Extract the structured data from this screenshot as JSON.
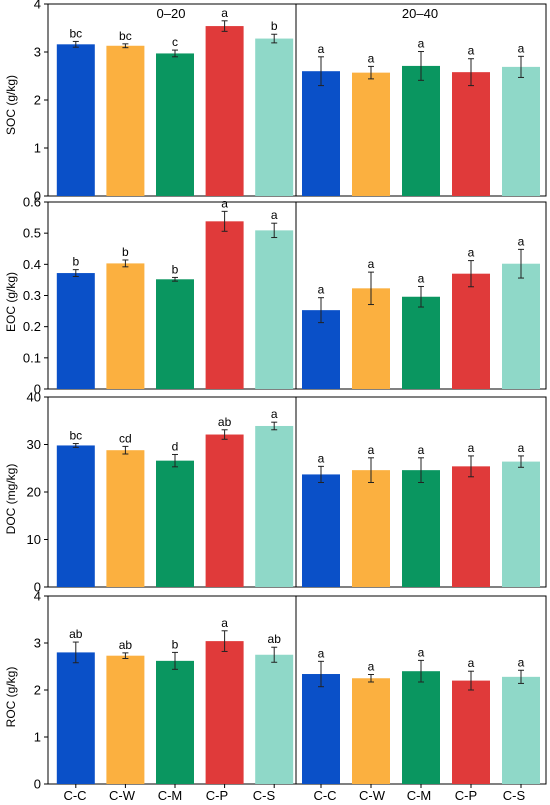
{
  "chart_data": {
    "type": "bar",
    "categories": [
      "C-C",
      "C-W",
      "C-M",
      "C-P",
      "C-S"
    ],
    "colors": [
      "#0a50c8",
      "#fbb040",
      "#0a9660",
      "#e03a3a",
      "#8fd8c8"
    ],
    "panel_titles": [
      "0–20",
      "20–40"
    ],
    "rows": [
      {
        "ylabel": "SOC (g/kg)",
        "ylim": [
          0,
          4
        ],
        "yticks": [
          "0",
          "1",
          "2",
          "3",
          "4"
        ],
        "panels": [
          {
            "values": [
              3.16,
              3.13,
              2.97,
              3.54,
              3.28
            ],
            "errors": [
              0.06,
              0.04,
              0.07,
              0.11,
              0.09
            ],
            "letters": [
              "bc",
              "bc",
              "c",
              "a",
              "b"
            ]
          },
          {
            "values": [
              2.6,
              2.57,
              2.71,
              2.58,
              2.69
            ],
            "errors": [
              0.3,
              0.13,
              0.3,
              0.28,
              0.22
            ],
            "letters": [
              "a",
              "a",
              "a",
              "a",
              "a"
            ]
          }
        ]
      },
      {
        "ylabel": "EOC (g/kg)",
        "ylim": [
          0,
          0.6
        ],
        "yticks": [
          "0",
          "0.1",
          "0.2",
          "0.3",
          "0.4",
          "0.5",
          "0.6"
        ],
        "panels": [
          {
            "values": [
              0.372,
              0.403,
              0.352,
              0.538,
              0.509
            ],
            "errors": [
              0.011,
              0.011,
              0.006,
              0.032,
              0.023
            ],
            "letters": [
              "b",
              "b",
              "b",
              "a",
              "a"
            ]
          },
          {
            "values": [
              0.253,
              0.323,
              0.296,
              0.37,
              0.402
            ],
            "errors": [
              0.04,
              0.052,
              0.033,
              0.042,
              0.046
            ],
            "letters": [
              "a",
              "a",
              "a",
              "a",
              "a"
            ]
          }
        ]
      },
      {
        "ylabel": "DOC (mg/kg)",
        "ylim": [
          0,
          40
        ],
        "yticks": [
          "0",
          "10",
          "20",
          "30",
          "40"
        ],
        "panels": [
          {
            "values": [
              29.8,
              28.8,
              26.6,
              32.1,
              33.9
            ],
            "errors": [
              0.4,
              0.8,
              1.3,
              1.0,
              0.8
            ],
            "letters": [
              "bc",
              "cd",
              "d",
              "ab",
              "a"
            ]
          },
          {
            "values": [
              23.7,
              24.6,
              24.6,
              25.4,
              26.4
            ],
            "errors": [
              1.7,
              2.6,
              2.6,
              2.2,
              1.2
            ],
            "letters": [
              "a",
              "a",
              "a",
              "a",
              "a"
            ]
          }
        ]
      },
      {
        "ylabel": "ROC (g/kg)",
        "ylim": [
          0,
          4
        ],
        "yticks": [
          "0",
          "1",
          "2",
          "3",
          "4"
        ],
        "panels": [
          {
            "values": [
              2.8,
              2.73,
              2.62,
              3.04,
              2.75
            ],
            "errors": [
              0.22,
              0.06,
              0.18,
              0.22,
              0.16
            ],
            "letters": [
              "ab",
              "ab",
              "b",
              "a",
              "ab"
            ]
          },
          {
            "values": [
              2.34,
              2.25,
              2.4,
              2.2,
              2.28
            ],
            "errors": [
              0.27,
              0.08,
              0.23,
              0.2,
              0.14
            ],
            "letters": [
              "a",
              "a",
              "a",
              "a",
              "a"
            ]
          }
        ]
      }
    ]
  }
}
